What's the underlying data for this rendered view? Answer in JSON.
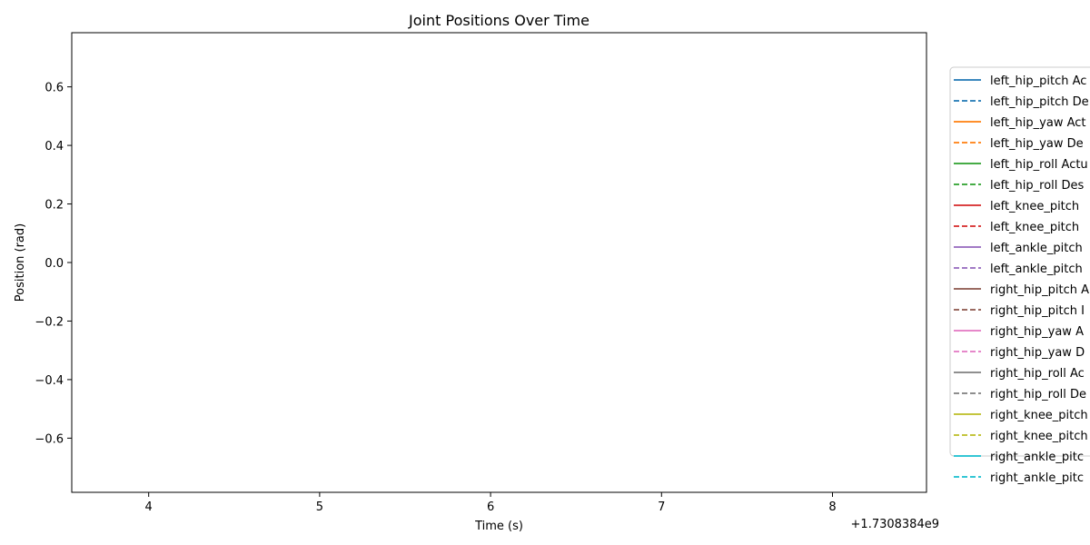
{
  "chart_data": {
    "type": "line",
    "title": "Joint Positions Over Time",
    "xlabel": "Time (s)",
    "ylabel": "Position (rad)",
    "x_offset_label": "+1.7308384e9",
    "xlim": [
      3.55,
      8.55
    ],
    "ylim": [
      -0.785,
      0.785
    ],
    "x_ticks": [
      {
        "value": 4,
        "label": "4"
      },
      {
        "value": 5,
        "label": "5"
      },
      {
        "value": 6,
        "label": "6"
      },
      {
        "value": 7,
        "label": "7"
      },
      {
        "value": 8,
        "label": "8"
      }
    ],
    "y_ticks": [
      {
        "value": 0.6,
        "label": "0.6"
      },
      {
        "value": 0.4,
        "label": "0.4"
      },
      {
        "value": 0.2,
        "label": "0.2"
      },
      {
        "value": 0.0,
        "label": "0.0"
      },
      {
        "value": -0.2,
        "label": "−0.2"
      },
      {
        "value": -0.4,
        "label": "−0.4"
      },
      {
        "value": -0.6,
        "label": "−0.6"
      }
    ],
    "grid": false,
    "legend_position": "right, outside plot",
    "series": [
      {
        "name": "left_hip_pitch Ac",
        "color": "#1f77b4",
        "dashed": false,
        "x": [],
        "y": []
      },
      {
        "name": "left_hip_pitch De",
        "color": "#1f77b4",
        "dashed": true,
        "x": [],
        "y": []
      },
      {
        "name": "left_hip_yaw Act",
        "color": "#ff7f0e",
        "dashed": false,
        "x": [],
        "y": []
      },
      {
        "name": "left_hip_yaw De",
        "color": "#ff7f0e",
        "dashed": true,
        "x": [],
        "y": []
      },
      {
        "name": "left_hip_roll Actu",
        "color": "#2ca02c",
        "dashed": false,
        "x": [],
        "y": []
      },
      {
        "name": "left_hip_roll Des",
        "color": "#2ca02c",
        "dashed": true,
        "x": [],
        "y": []
      },
      {
        "name": "left_knee_pitch",
        "color": "#d62728",
        "dashed": false,
        "x": [],
        "y": []
      },
      {
        "name": "left_knee_pitch",
        "color": "#d62728",
        "dashed": true,
        "x": [],
        "y": []
      },
      {
        "name": "left_ankle_pitch",
        "color": "#9467bd",
        "dashed": false,
        "x": [],
        "y": []
      },
      {
        "name": "left_ankle_pitch",
        "color": "#9467bd",
        "dashed": true,
        "x": [],
        "y": []
      },
      {
        "name": "right_hip_pitch A",
        "color": "#8c564b",
        "dashed": false,
        "x": [],
        "y": []
      },
      {
        "name": "right_hip_pitch I",
        "color": "#8c564b",
        "dashed": true,
        "x": [],
        "y": []
      },
      {
        "name": "right_hip_yaw A",
        "color": "#e377c2",
        "dashed": false,
        "x": [],
        "y": []
      },
      {
        "name": "right_hip_yaw D",
        "color": "#e377c2",
        "dashed": true,
        "x": [],
        "y": []
      },
      {
        "name": "right_hip_roll Ac",
        "color": "#7f7f7f",
        "dashed": false,
        "x": [],
        "y": []
      },
      {
        "name": "right_hip_roll De",
        "color": "#7f7f7f",
        "dashed": true,
        "x": [],
        "y": []
      },
      {
        "name": "right_knee_pitch",
        "color": "#bcbd22",
        "dashed": false,
        "x": [],
        "y": []
      },
      {
        "name": "right_knee_pitch",
        "color": "#bcbd22",
        "dashed": true,
        "x": [],
        "y": []
      },
      {
        "name": "right_ankle_pitc",
        "color": "#17becf",
        "dashed": false,
        "x": [],
        "y": []
      },
      {
        "name": "right_ankle_pitc",
        "color": "#17becf",
        "dashed": true,
        "x": [],
        "y": []
      }
    ]
  }
}
